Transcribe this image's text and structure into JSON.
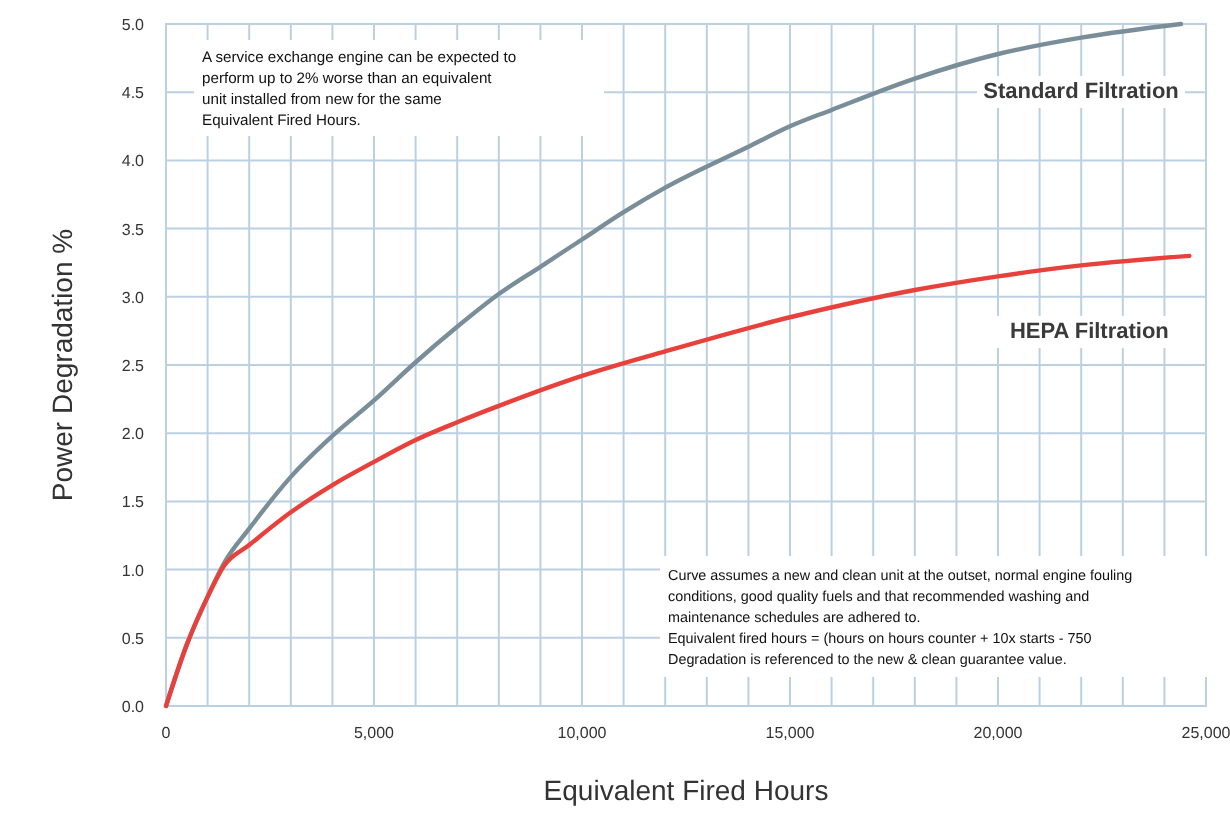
{
  "chart_data": {
    "type": "line",
    "xlabel": "Equivalent Fired Hours",
    "ylabel": "Power Degradation %",
    "xlim": [
      0,
      25000
    ],
    "ylim": [
      0,
      5
    ],
    "xticks": [
      {
        "value": 0,
        "label": "0"
      },
      {
        "value": 1000,
        "label": null
      },
      {
        "value": 2000,
        "label": null
      },
      {
        "value": 3000,
        "label": null
      },
      {
        "value": 4000,
        "label": null
      },
      {
        "value": 5000,
        "label": "5,000"
      },
      {
        "value": 6000,
        "label": null
      },
      {
        "value": 7000,
        "label": null
      },
      {
        "value": 8000,
        "label": null
      },
      {
        "value": 9000,
        "label": null
      },
      {
        "value": 10000,
        "label": "10,000"
      },
      {
        "value": 11000,
        "label": null
      },
      {
        "value": 12000,
        "label": null
      },
      {
        "value": 13000,
        "label": null
      },
      {
        "value": 14000,
        "label": null
      },
      {
        "value": 15000,
        "label": "15,000"
      },
      {
        "value": 16000,
        "label": null
      },
      {
        "value": 17000,
        "label": null
      },
      {
        "value": 18000,
        "label": null
      },
      {
        "value": 19000,
        "label": null
      },
      {
        "value": 20000,
        "label": "20,000"
      },
      {
        "value": 21000,
        "label": null
      },
      {
        "value": 22000,
        "label": null
      },
      {
        "value": 23000,
        "label": null
      },
      {
        "value": 24000,
        "label": null
      },
      {
        "value": 25000,
        "label": "25,000"
      }
    ],
    "yticks": [
      {
        "value": 0,
        "label": "0.0"
      },
      {
        "value": 0.5,
        "label": "0.5"
      },
      {
        "value": 1,
        "label": "1.0"
      },
      {
        "value": 1.5,
        "label": "1.5"
      },
      {
        "value": 2,
        "label": "2.0"
      },
      {
        "value": 2.5,
        "label": "2.5"
      },
      {
        "value": 3,
        "label": "3.0"
      },
      {
        "value": 3.5,
        "label": "3.5"
      },
      {
        "value": 4,
        "label": "4.0"
      },
      {
        "value": 4.5,
        "label": "4.5"
      },
      {
        "value": 5,
        "label": "5.0"
      }
    ],
    "grid": true,
    "marker": "none",
    "line_style": "solid",
    "series": [
      {
        "name": "Standard Filtration",
        "color": "#7a8e9a",
        "x": [
          0,
          500,
          1000,
          1400,
          2000,
          3000,
          4000,
          5000,
          6000,
          7000,
          8000,
          9000,
          10000,
          11000,
          12000,
          14000,
          15000,
          16000,
          18000,
          20000,
          22000,
          24400
        ],
        "values": [
          0,
          0.45,
          0.8,
          1.05,
          1.3,
          1.68,
          1.98,
          2.24,
          2.52,
          2.78,
          3.02,
          3.22,
          3.42,
          3.62,
          3.8,
          4.1,
          4.25,
          4.37,
          4.6,
          4.78,
          4.9,
          5.0
        ]
      },
      {
        "name": "HEPA Filtration",
        "color": "#e8413c",
        "x": [
          0,
          500,
          1000,
          1400,
          2000,
          3000,
          4000,
          5000,
          6000,
          7000,
          8000,
          10000,
          12000,
          15000,
          18000,
          20000,
          22000,
          24600
        ],
        "values": [
          0,
          0.45,
          0.8,
          1.03,
          1.18,
          1.42,
          1.62,
          1.79,
          1.95,
          2.08,
          2.2,
          2.42,
          2.6,
          2.85,
          3.05,
          3.15,
          3.23,
          3.3
        ]
      }
    ],
    "annotations": [
      "A service exchange engine can be expected to perform up to 2% worse than an equivalent unit installed from new for the same Equivalent Fired Hours.",
      "Curve assumes a new and clean unit at the outset, normal engine fouling conditions, good quality fuels and that recommended washing and maintenance schedules are adhered to.",
      "Equivalent fired hours = (hours on hours counter + 10x starts - 750",
      "Degradation is referenced to the new & clean guarantee value."
    ]
  }
}
